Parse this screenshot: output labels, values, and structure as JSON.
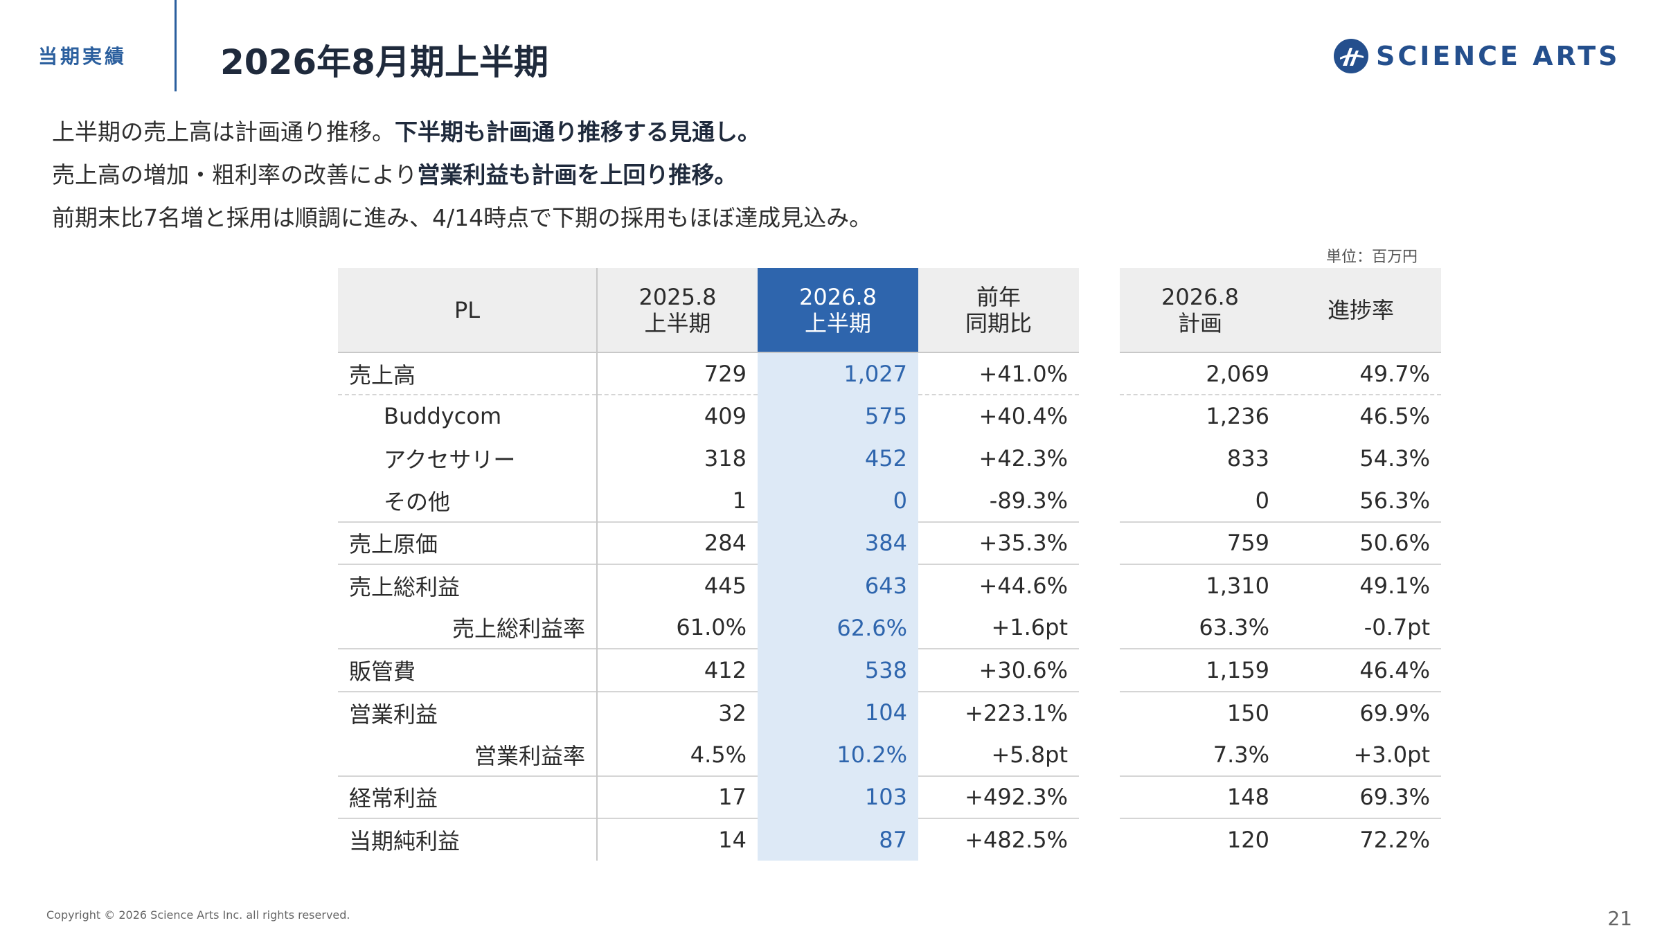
{
  "header": {
    "section_label": "当期実績",
    "title": "2026年8月期上半期"
  },
  "logo": {
    "text": "Science Arts",
    "brand_color": "#244f8d"
  },
  "summary": {
    "line1_plain": "上半期の売上高は計画通り推移。",
    "line1_bold": "下半期も計画通り推移する見通し。",
    "line2_plain": "売上高の増加・粗利率の改善により",
    "line2_bold": "営業利益も計画を上回り推移。",
    "line3": "前期末比7名増と採用は順調に進み、4/14時点で下期の採用もほぼ達成見込み。"
  },
  "unit_note": "単位：百万円",
  "pl_table": {
    "headers": {
      "pl": "PL",
      "prev_line1": "2025.8",
      "prev_line2": "上半期",
      "cur_line1": "2026.8",
      "cur_line2": "上半期",
      "yoy_line1": "前年",
      "yoy_line2": "同期比"
    },
    "rows": [
      {
        "label": "売上高",
        "prev": "729",
        "cur": "1,027",
        "yoy": "+41.0%"
      },
      {
        "label": "Buddycom",
        "prev": "409",
        "cur": "575",
        "yoy": "+40.4%"
      },
      {
        "label": "アクセサリー",
        "prev": "318",
        "cur": "452",
        "yoy": "+42.3%"
      },
      {
        "label": "その他",
        "prev": "1",
        "cur": "0",
        "yoy": "-89.3%"
      },
      {
        "label": "売上原価",
        "prev": "284",
        "cur": "384",
        "yoy": "+35.3%"
      },
      {
        "label": "売上総利益",
        "prev": "445",
        "cur": "643",
        "yoy": "+44.6%"
      },
      {
        "label": "売上総利益率",
        "prev": "61.0%",
        "cur": "62.6%",
        "yoy": "+1.6pt"
      },
      {
        "label": "販管費",
        "prev": "412",
        "cur": "538",
        "yoy": "+30.6%"
      },
      {
        "label": "営業利益",
        "prev": "32",
        "cur": "104",
        "yoy": "+223.1%"
      },
      {
        "label": "営業利益率",
        "prev": "4.5%",
        "cur": "10.2%",
        "yoy": "+5.8pt"
      },
      {
        "label": "経常利益",
        "prev": "17",
        "cur": "103",
        "yoy": "+492.3%"
      },
      {
        "label": "当期純利益",
        "prev": "14",
        "cur": "87",
        "yoy": "+482.5%"
      }
    ]
  },
  "plan_table": {
    "headers": {
      "plan_line1": "2026.8",
      "plan_line2": "計画",
      "progress": "進捗率"
    },
    "rows": [
      {
        "plan": "2,069",
        "progress": "49.7%"
      },
      {
        "plan": "1,236",
        "progress": "46.5%"
      },
      {
        "plan": "833",
        "progress": "54.3%"
      },
      {
        "plan": "0",
        "progress": "56.3%"
      },
      {
        "plan": "759",
        "progress": "50.6%"
      },
      {
        "plan": "1,310",
        "progress": "49.1%"
      },
      {
        "plan": "63.3%",
        "progress": "-0.7pt"
      },
      {
        "plan": "1,159",
        "progress": "46.4%"
      },
      {
        "plan": "150",
        "progress": "69.9%"
      },
      {
        "plan": "7.3%",
        "progress": "+3.0pt"
      },
      {
        "plan": "148",
        "progress": "69.3%"
      },
      {
        "plan": "120",
        "progress": "72.2%"
      }
    ]
  },
  "footer": {
    "copyright": "Copyright © 2026 Science Arts Inc. all rights reserved.",
    "page_number": "21"
  },
  "colors": {
    "accent_blue": "#2e65ad",
    "current_column_bg": "#dde9f6",
    "header_bg": "#eeeeee"
  }
}
